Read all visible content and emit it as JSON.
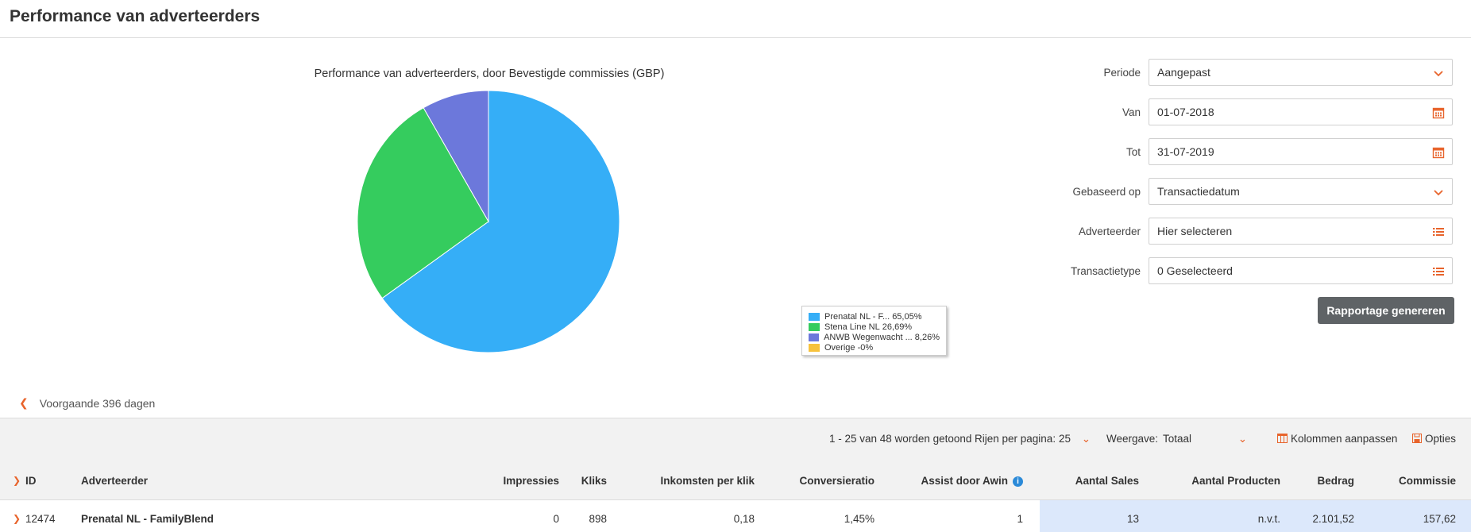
{
  "page_title": "Performance van adverteerders",
  "chart_data": {
    "type": "pie",
    "title": "Performance van adverteerders, door Bevestigde commissies (GBP)",
    "slices": [
      {
        "label": "Prenatal NL - F...",
        "value": 65.05,
        "display": "65,05%",
        "color": "#35aef7"
      },
      {
        "label": "Stena Line NL",
        "value": 26.69,
        "display": "26,69%",
        "color": "#35cc5e"
      },
      {
        "label": "ANWB Wegenwacht ...",
        "value": 8.26,
        "display": "8,26%",
        "color": "#6c78db"
      },
      {
        "label": "Overige",
        "value": 0,
        "display": "-0%",
        "color": "#f7c23c"
      }
    ]
  },
  "form": {
    "periode": {
      "label": "Periode",
      "value": "Aangepast",
      "icon": "chevron-down-icon"
    },
    "van": {
      "label": "Van",
      "value": "01-07-2018",
      "icon": "calendar-icon"
    },
    "tot": {
      "label": "Tot",
      "value": "31-07-2019",
      "icon": "calendar-icon"
    },
    "gebaseerd": {
      "label": "Gebaseerd op",
      "value": "Transactiedatum",
      "icon": "chevron-down-icon"
    },
    "adverteerder": {
      "label": "Adverteerder",
      "value": "Hier selecteren",
      "icon": "list-icon"
    },
    "transactietype": {
      "label": "Transactietype",
      "value": "0 Geselecteerd",
      "icon": "list-icon"
    },
    "generate_label": "Rapportage genereren"
  },
  "prev_link": "Voorgaande 396 dagen",
  "toolbar": {
    "count_text": "1 - 25 van 48 worden getoond",
    "rows_label": "Rijen per pagina:",
    "rows_value": "25",
    "view_label": "Weergave:",
    "view_value": "Totaal",
    "columns_label": "Kolommen aanpassen",
    "options_label": "Opties"
  },
  "table": {
    "headers": [
      "ID",
      "Adverteerder",
      "Impressies",
      "Kliks",
      "Inkomsten per klik",
      "Conversieratio",
      "Assist door Awin",
      "Aantal Sales",
      "Aantal Producten",
      "Bedrag",
      "Commissie"
    ],
    "rows": [
      [
        "12474",
        "Prenatal NL - FamilyBlend",
        "0",
        "898",
        "0,18",
        "1,45%",
        "1",
        "13",
        "n.v.t.",
        "2.101,52",
        "157,62"
      ]
    ]
  },
  "colors": {
    "accent": "#e8642c",
    "button": "#5f6366",
    "highlight": "#dce8fb"
  }
}
